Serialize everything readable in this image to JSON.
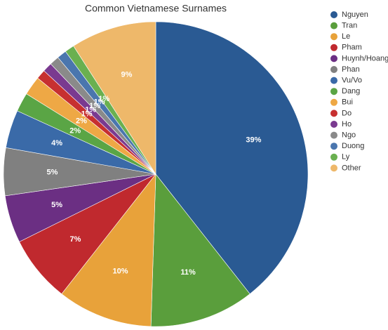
{
  "chart_data": {
    "type": "pie",
    "title": "Common Vietnamese Surnames",
    "categories": [
      "Nguyen",
      "Tran",
      "Le",
      "Pham",
      "Huynh/Hoang",
      "Phan",
      "Vu/Vo",
      "Dang",
      "Bui",
      "Do",
      "Ho",
      "Ngo",
      "Duong",
      "Ly",
      "Other"
    ],
    "values": [
      39,
      11,
      10,
      7,
      5,
      5,
      4,
      2,
      2,
      1,
      1,
      1,
      1,
      1,
      9
    ],
    "colors": [
      "#2a5a93",
      "#5a9e3c",
      "#e8a23a",
      "#c0292e",
      "#6b2f83",
      "#808080",
      "#3a6aa8",
      "#5aa545",
      "#eea845",
      "#c73030",
      "#7a3a90",
      "#8a8a8a",
      "#4a76ae",
      "#6ab050",
      "#eeb86a"
    ],
    "unit": "%"
  }
}
